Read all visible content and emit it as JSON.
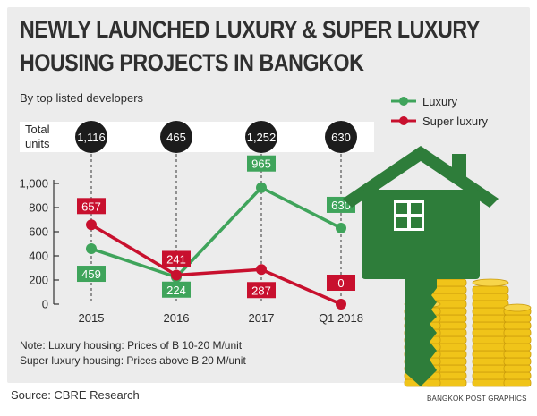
{
  "header": {
    "title_line1": "NEWLY LAUNCHED LUXURY & SUPER LUXURY",
    "title_line2": "HOUSING PROJECTS IN BANGKOK",
    "subtitle": "By top listed developers"
  },
  "total_units": {
    "label_line1": "Total",
    "label_line2": "units",
    "values": [
      "1,116",
      "465",
      "1,252",
      "630"
    ]
  },
  "notes": {
    "line1": "Note: Luxury housing: Prices of B 10-20 M/unit",
    "line2": "Super luxury housing: Prices above B 20 M/unit"
  },
  "footer": {
    "source": "Source: CBRE Research",
    "credit": "BANGKOK POST GRAPHICS"
  },
  "colors": {
    "luxury": "#3fa45b",
    "super_luxury": "#c8102e",
    "house": "#2e7d3a",
    "gold": "#f0c419"
  },
  "chart_data": {
    "type": "line",
    "categories": [
      "2015",
      "2016",
      "2017",
      "Q1 2018"
    ],
    "yticks": [
      "0",
      "200",
      "400",
      "600",
      "800",
      "1,000"
    ],
    "ylim": [
      0,
      1000
    ],
    "series": [
      {
        "name": "Luxury",
        "values": [
          459,
          224,
          965,
          630
        ],
        "labels": [
          "459",
          "224",
          "965",
          "630"
        ]
      },
      {
        "name": "Super luxury",
        "values": [
          657,
          241,
          287,
          0
        ],
        "labels": [
          "657",
          "241",
          "287",
          "0"
        ]
      }
    ],
    "legend": "top-right"
  }
}
